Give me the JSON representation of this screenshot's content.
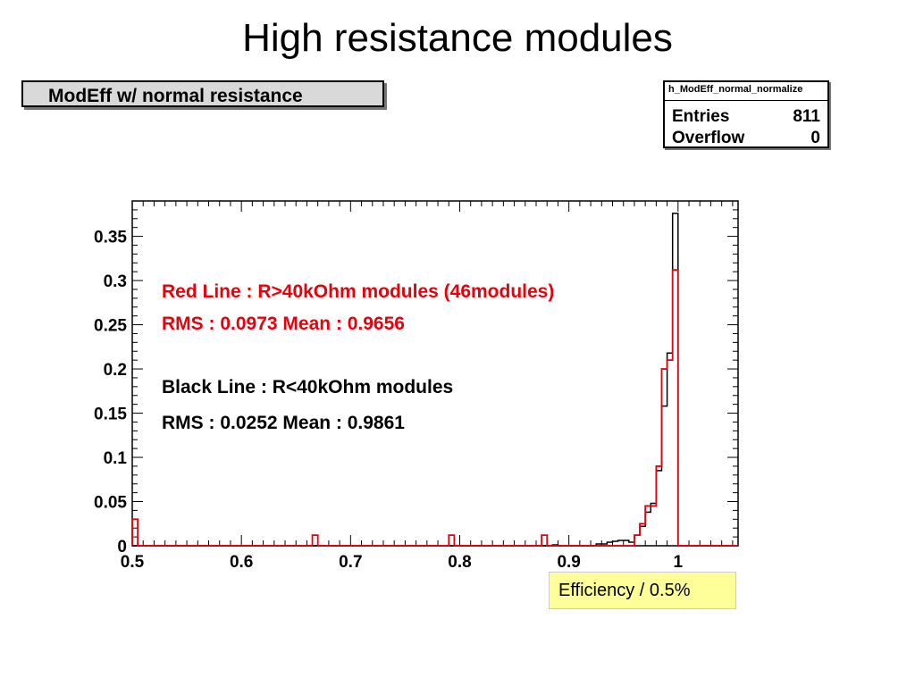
{
  "slide": {
    "title": "High resistance modules"
  },
  "histogram_title": "ModEff w/ normal resistance",
  "stats_box": {
    "name": "h_ModEff_normal_normalize",
    "rows": [
      {
        "label": "Entries",
        "value": "811"
      },
      {
        "label": "Overflow",
        "value": "0"
      }
    ]
  },
  "annotations": {
    "red_line": "Red Line : R>40kOhm  modules (46modules)",
    "red_stats": "RMS : 0.0973  Mean : 0.9656",
    "black_line": "Black Line : R<40kOhm modules",
    "black_stats": "RMS : 0.0252  Mean : 0.9861"
  },
  "xaxis_label": "Efficiency / 0.5%",
  "colors": {
    "red_series": "#e8000b",
    "black_series": "#000000",
    "label_box": "#ffff99"
  },
  "chart_data": {
    "type": "step-histogram",
    "xlim": [
      0.5,
      1.055
    ],
    "ylim": [
      0,
      0.39
    ],
    "bin_width": 0.005,
    "xticks": [
      0.5,
      0.6,
      0.7,
      0.8,
      0.9,
      1
    ],
    "xtick_labels": [
      "0.5",
      "0.6",
      "0.7",
      "0.8",
      "0.9",
      "1"
    ],
    "yticks": [
      0,
      0.05,
      0.1,
      0.15,
      0.2,
      0.25,
      0.3,
      0.35
    ],
    "ytick_labels": [
      "0",
      "0.05",
      "0.1",
      "0.15",
      "0.2",
      "0.25",
      "0.3",
      "0.35"
    ],
    "series": [
      {
        "name": "R<40kOhm modules",
        "color": "#000000",
        "x": [
          0.885,
          0.925,
          0.93,
          0.935,
          0.94,
          0.945,
          0.95,
          0.955,
          0.96,
          0.965,
          0.97,
          0.975,
          0.98,
          0.985,
          0.99,
          0.995
        ],
        "y": [
          0.001,
          0.002,
          0.002,
          0.004,
          0.005,
          0.006,
          0.006,
          0.004,
          0.012,
          0.022,
          0.038,
          0.048,
          0.085,
          0.158,
          0.218,
          0.376
        ]
      },
      {
        "name": "R>40kOhm modules",
        "color": "#e8000b",
        "x": [
          0.5,
          0.665,
          0.79,
          0.875,
          0.96,
          0.965,
          0.97,
          0.975,
          0.98,
          0.985,
          0.99,
          0.995
        ],
        "y": [
          0.03,
          0.012,
          0.012,
          0.012,
          0.012,
          0.025,
          0.045,
          0.045,
          0.09,
          0.2,
          0.21,
          0.312
        ]
      }
    ]
  }
}
